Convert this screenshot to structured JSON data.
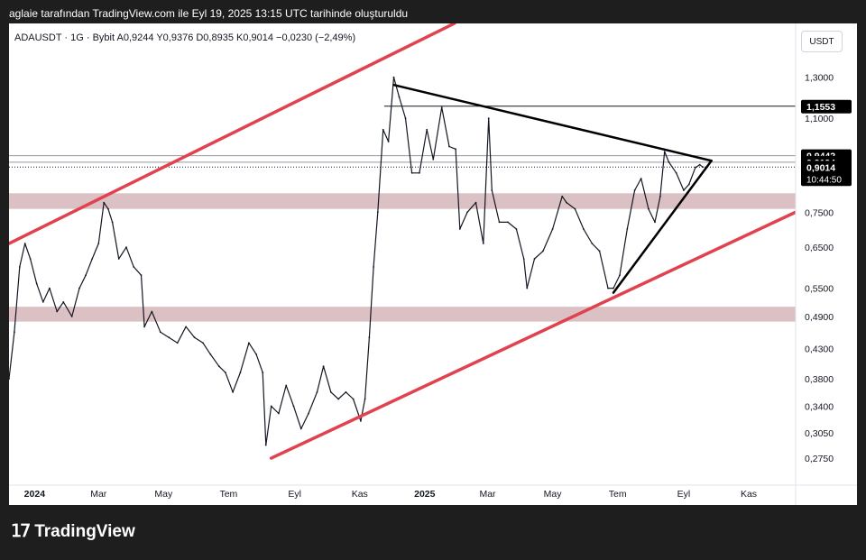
{
  "header": {
    "created_by": "aglaie tarafından TradingView.com ile Eyl 19, 2025 13:15 UTC tarihinde oluşturuldu"
  },
  "legend": {
    "symbol_line": "ADAUSDT · 1G · Bybit  A0,9244  Y0,9376  D0,8935  K0,9014  −0,0230 (−2,49%)"
  },
  "currency_button": "USDT",
  "brand": {
    "icon": "tradingview-logo-icon",
    "name": "TradingView"
  },
  "chart_data": {
    "type": "line",
    "y_scale": "log",
    "ylim": [
      0.25,
      1.45
    ],
    "y_ticks": [
      "1,3000",
      "1,1000",
      "0,7500",
      "0,6500",
      "0,5500",
      "0,4900",
      "0,4300",
      "0,3800",
      "0,3400",
      "0,3050",
      "0,2750"
    ],
    "y_tick_values": [
      1.3,
      1.1,
      0.75,
      0.65,
      0.55,
      0.49,
      0.43,
      0.38,
      0.34,
      0.305,
      0.275
    ],
    "x_ticks": [
      "2024",
      "Mar",
      "May",
      "Tem",
      "Eyl",
      "Kas",
      "2025",
      "Mar",
      "May",
      "Tem",
      "Eyl",
      "Kas"
    ],
    "x_tick_bold": [
      "2024",
      "2025"
    ],
    "x_tick_dates": [
      "2024-01-01",
      "2024-03-01",
      "2024-05-01",
      "2024-07-01",
      "2024-09-01",
      "2024-11-01",
      "2025-01-01",
      "2025-03-01",
      "2025-05-01",
      "2025-07-01",
      "2025-09-01",
      "2025-11-01"
    ],
    "x_range": [
      "2023-12-08",
      "2025-12-15"
    ],
    "series": [
      {
        "color": "#131722",
        "points": [
          [
            "2023-12-08",
            0.38
          ],
          [
            "2023-12-13",
            0.46
          ],
          [
            "2023-12-18",
            0.6
          ],
          [
            "2023-12-23",
            0.66
          ],
          [
            "2023-12-28",
            0.62
          ],
          [
            "2024-01-03",
            0.56
          ],
          [
            "2024-01-09",
            0.52
          ],
          [
            "2024-01-15",
            0.55
          ],
          [
            "2024-01-22",
            0.5
          ],
          [
            "2024-01-28",
            0.52
          ],
          [
            "2024-02-05",
            0.49
          ],
          [
            "2024-02-12",
            0.55
          ],
          [
            "2024-02-18",
            0.58
          ],
          [
            "2024-02-24",
            0.62
          ],
          [
            "2024-03-01",
            0.66
          ],
          [
            "2024-03-06",
            0.78
          ],
          [
            "2024-03-10",
            0.76
          ],
          [
            "2024-03-14",
            0.72
          ],
          [
            "2024-03-20",
            0.62
          ],
          [
            "2024-03-27",
            0.65
          ],
          [
            "2024-04-03",
            0.6
          ],
          [
            "2024-04-10",
            0.58
          ],
          [
            "2024-04-13",
            0.47
          ],
          [
            "2024-04-20",
            0.5
          ],
          [
            "2024-04-28",
            0.46
          ],
          [
            "2024-05-06",
            0.45
          ],
          [
            "2024-05-14",
            0.44
          ],
          [
            "2024-05-22",
            0.47
          ],
          [
            "2024-05-30",
            0.45
          ],
          [
            "2024-06-07",
            0.44
          ],
          [
            "2024-06-14",
            0.42
          ],
          [
            "2024-06-22",
            0.4
          ],
          [
            "2024-06-28",
            0.39
          ],
          [
            "2024-07-05",
            0.36
          ],
          [
            "2024-07-12",
            0.39
          ],
          [
            "2024-07-20",
            0.44
          ],
          [
            "2024-07-27",
            0.42
          ],
          [
            "2024-08-02",
            0.39
          ],
          [
            "2024-08-05",
            0.29
          ],
          [
            "2024-08-10",
            0.34
          ],
          [
            "2024-08-17",
            0.33
          ],
          [
            "2024-08-24",
            0.37
          ],
          [
            "2024-08-31",
            0.34
          ],
          [
            "2024-09-07",
            0.31
          ],
          [
            "2024-09-14",
            0.33
          ],
          [
            "2024-09-22",
            0.36
          ],
          [
            "2024-09-28",
            0.4
          ],
          [
            "2024-10-05",
            0.36
          ],
          [
            "2024-10-12",
            0.35
          ],
          [
            "2024-10-19",
            0.36
          ],
          [
            "2024-10-26",
            0.35
          ],
          [
            "2024-11-02",
            0.32
          ],
          [
            "2024-11-06",
            0.35
          ],
          [
            "2024-11-10",
            0.45
          ],
          [
            "2024-11-14",
            0.6
          ],
          [
            "2024-11-18",
            0.75
          ],
          [
            "2024-11-23",
            1.05
          ],
          [
            "2024-11-28",
            1.0
          ],
          [
            "2024-12-03",
            1.3
          ],
          [
            "2024-12-08",
            1.2
          ],
          [
            "2024-12-14",
            1.1
          ],
          [
            "2024-12-20",
            0.88
          ],
          [
            "2024-12-27",
            0.88
          ],
          [
            "2025-01-03",
            1.05
          ],
          [
            "2025-01-09",
            0.93
          ],
          [
            "2025-01-17",
            1.15
          ],
          [
            "2025-01-24",
            0.98
          ],
          [
            "2025-01-30",
            0.97
          ],
          [
            "2025-02-03",
            0.7
          ],
          [
            "2025-02-10",
            0.75
          ],
          [
            "2025-02-18",
            0.78
          ],
          [
            "2025-02-25",
            0.66
          ],
          [
            "2025-03-02",
            1.1
          ],
          [
            "2025-03-05",
            0.82
          ],
          [
            "2025-03-12",
            0.72
          ],
          [
            "2025-03-20",
            0.72
          ],
          [
            "2025-03-28",
            0.7
          ],
          [
            "2025-04-04",
            0.62
          ],
          [
            "2025-04-07",
            0.55
          ],
          [
            "2025-04-14",
            0.62
          ],
          [
            "2025-04-22",
            0.64
          ],
          [
            "2025-05-01",
            0.7
          ],
          [
            "2025-05-10",
            0.8
          ],
          [
            "2025-05-14",
            0.78
          ],
          [
            "2025-05-22",
            0.76
          ],
          [
            "2025-05-30",
            0.7
          ],
          [
            "2025-06-07",
            0.66
          ],
          [
            "2025-06-14",
            0.64
          ],
          [
            "2025-06-22",
            0.55
          ],
          [
            "2025-06-27",
            0.55
          ],
          [
            "2025-07-03",
            0.58
          ],
          [
            "2025-07-10",
            0.7
          ],
          [
            "2025-07-17",
            0.82
          ],
          [
            "2025-07-23",
            0.86
          ],
          [
            "2025-07-30",
            0.76
          ],
          [
            "2025-08-05",
            0.72
          ],
          [
            "2025-08-10",
            0.8
          ],
          [
            "2025-08-14",
            0.96
          ],
          [
            "2025-08-18",
            0.92
          ],
          [
            "2025-08-25",
            0.88
          ],
          [
            "2025-09-01",
            0.82
          ],
          [
            "2025-09-06",
            0.84
          ],
          [
            "2025-09-12",
            0.9
          ],
          [
            "2025-09-16",
            0.91
          ],
          [
            "2025-09-19",
            0.9014
          ]
        ]
      }
    ],
    "support_zones": [
      {
        "low": 0.76,
        "high": 0.81,
        "color": "#d5b6b9"
      },
      {
        "low": 0.48,
        "high": 0.51,
        "color": "#d5b6b9"
      }
    ],
    "channel_lines": [
      {
        "color": "#e0434f",
        "from": [
          "2023-12-08",
          0.66
        ],
        "to": [
          "2025-01-29",
          1.62
        ]
      },
      {
        "color": "#e0434f",
        "from": [
          "2024-08-10",
          0.275
        ],
        "to": [
          "2025-12-15",
          0.75
        ]
      }
    ],
    "triangle_lines": [
      {
        "color": "#000000",
        "from": [
          "2024-12-03",
          1.26
        ],
        "to": [
          "2025-09-27",
          0.925
        ]
      },
      {
        "color": "#000000",
        "from": [
          "2025-06-27",
          0.54
        ],
        "to": [
          "2025-09-27",
          0.925
        ]
      }
    ],
    "horizontal_lines": [
      {
        "value": 1.1553,
        "style": "solid",
        "color": "#131722",
        "from": "2024-11-24"
      },
      {
        "value": 0.9442,
        "style": "solid",
        "color": "#9598a1",
        "from": "2023-12-08"
      },
      {
        "value": 0.9194,
        "style": "solid",
        "color": "#9598a1",
        "from": "2023-12-08"
      },
      {
        "value": 0.9014,
        "style": "dotted",
        "color": "#131722",
        "from": "2023-12-08"
      }
    ],
    "price_labels": [
      {
        "value": 1.1553,
        "text": "1,1553",
        "bg": "#000000"
      },
      {
        "value": 0.9442,
        "text": "0,9442",
        "bg": "#000000"
      },
      {
        "value": 0.9194,
        "text": "0,9194",
        "bg": "#000000"
      },
      {
        "value": 0.9014,
        "text": "0,9014",
        "sub": "10:44:50",
        "bg": "#000000"
      }
    ]
  }
}
